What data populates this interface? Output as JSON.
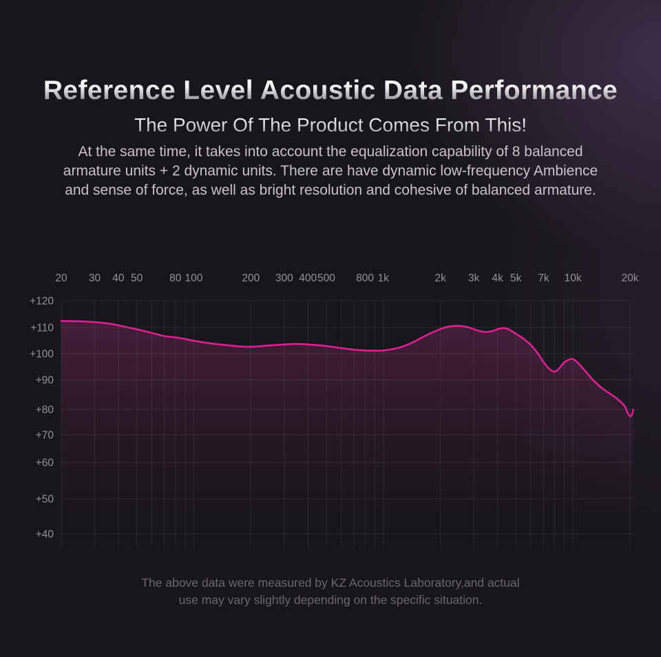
{
  "header": {
    "title": "Reference Level Acoustic Data Performance",
    "subtitle": "The Power Of The Product Comes From This!",
    "description_lines": [
      "At the same time, it takes into account the equalization capability of 8 balanced",
      "armature units + 2 dynamic units. There are have dynamic low-frequency Ambience",
      "and sense of force, as well as bright resolution and cohesive of balanced armature."
    ]
  },
  "footnote": {
    "lines": [
      "The above data were measured by KZ Acoustics Laboratory,and actual",
      "use may vary slightly depending on the specific situation."
    ]
  },
  "chart_data": {
    "type": "area",
    "title": "",
    "xlabel": "",
    "ylabel": "",
    "x_scale": "log",
    "x_unit": "Hz",
    "y_unit": "dB",
    "x_range": [
      20,
      21000
    ],
    "y_range": [
      40,
      120
    ],
    "grid": true,
    "legend": false,
    "x_tick_labels": [
      {
        "f": 20,
        "label": "20"
      },
      {
        "f": 30,
        "label": "30"
      },
      {
        "f": 40,
        "label": "40"
      },
      {
        "f": 50,
        "label": "50"
      },
      {
        "f": 80,
        "label": "80"
      },
      {
        "f": 100,
        "label": "100"
      },
      {
        "f": 200,
        "label": "200"
      },
      {
        "f": 300,
        "label": "300"
      },
      {
        "f": 400,
        "label": "400"
      },
      {
        "f": 500,
        "label": "500"
      },
      {
        "f": 800,
        "label": "800"
      },
      {
        "f": 1000,
        "label": "1k"
      },
      {
        "f": 2000,
        "label": "2k"
      },
      {
        "f": 3000,
        "label": "3k"
      },
      {
        "f": 4000,
        "label": "4k"
      },
      {
        "f": 5000,
        "label": "5k"
      },
      {
        "f": 7000,
        "label": "7k"
      },
      {
        "f": 10000,
        "label": "10k"
      },
      {
        "f": 20000,
        "label": "20k"
      }
    ],
    "x_gridlines": [
      20,
      30,
      40,
      50,
      60,
      70,
      80,
      90,
      100,
      200,
      300,
      400,
      500,
      600,
      700,
      800,
      900,
      1000,
      2000,
      3000,
      4000,
      5000,
      6000,
      7000,
      8000,
      9000,
      10000,
      20000
    ],
    "y_ticks": [
      {
        "v": 120,
        "label": "+120"
      },
      {
        "v": 110,
        "label": "+110"
      },
      {
        "v": 100,
        "label": "+100"
      },
      {
        "v": 90,
        "label": "+90"
      },
      {
        "v": 80,
        "label": "+80"
      },
      {
        "v": 70,
        "label": "+70"
      },
      {
        "v": 60,
        "label": "+60"
      },
      {
        "v": 50,
        "label": "+50"
      },
      {
        "v": 40,
        "label": "+40"
      }
    ],
    "colors": {
      "line": "#de2191",
      "fill_top": "#c23390",
      "grid": "rgba(255,255,255,0.08)",
      "tick_text": "#95919a"
    },
    "series": [
      {
        "name": "frequency_response_dB",
        "points": [
          [
            20,
            112.4
          ],
          [
            25,
            112.3
          ],
          [
            30,
            112.0
          ],
          [
            35,
            111.5
          ],
          [
            40,
            110.8
          ],
          [
            45,
            110.0
          ],
          [
            50,
            109.3
          ],
          [
            60,
            107.9
          ],
          [
            70,
            106.7
          ],
          [
            80,
            106.2
          ],
          [
            90,
            105.6
          ],
          [
            100,
            104.9
          ],
          [
            120,
            104.0
          ],
          [
            150,
            103.2
          ],
          [
            180,
            102.7
          ],
          [
            200,
            102.6
          ],
          [
            250,
            103.1
          ],
          [
            300,
            103.5
          ],
          [
            350,
            103.7
          ],
          [
            400,
            103.5
          ],
          [
            450,
            103.2
          ],
          [
            500,
            102.9
          ],
          [
            600,
            102.1
          ],
          [
            700,
            101.5
          ],
          [
            800,
            101.2
          ],
          [
            900,
            101.1
          ],
          [
            1000,
            101.2
          ],
          [
            1200,
            102.2
          ],
          [
            1400,
            104.0
          ],
          [
            1600,
            106.2
          ],
          [
            1800,
            108.0
          ],
          [
            2000,
            109.4
          ],
          [
            2200,
            110.3
          ],
          [
            2500,
            110.6
          ],
          [
            2800,
            110.1
          ],
          [
            3100,
            109.0
          ],
          [
            3400,
            108.3
          ],
          [
            3700,
            108.5
          ],
          [
            4000,
            109.3
          ],
          [
            4300,
            109.8
          ],
          [
            4600,
            109.2
          ],
          [
            5000,
            107.6
          ],
          [
            5500,
            105.6
          ],
          [
            6000,
            103.3
          ],
          [
            6500,
            100.2
          ],
          [
            7000,
            96.7
          ],
          [
            7400,
            94.6
          ],
          [
            7800,
            93.3
          ],
          [
            8100,
            93.2
          ],
          [
            8500,
            94.5
          ],
          [
            9000,
            96.6
          ],
          [
            9600,
            97.8
          ],
          [
            10000,
            97.9
          ],
          [
            10500,
            96.8
          ],
          [
            11000,
            95.3
          ],
          [
            12000,
            92.1
          ],
          [
            13000,
            89.4
          ],
          [
            14000,
            87.5
          ],
          [
            15000,
            86.1
          ],
          [
            16000,
            84.9
          ],
          [
            17000,
            83.7
          ],
          [
            18000,
            82.3
          ],
          [
            18800,
            81.0
          ],
          [
            19300,
            79.2
          ],
          [
            19800,
            77.6
          ],
          [
            20200,
            77.3
          ],
          [
            20500,
            78.0
          ],
          [
            20800,
            79.8
          ]
        ]
      }
    ]
  }
}
